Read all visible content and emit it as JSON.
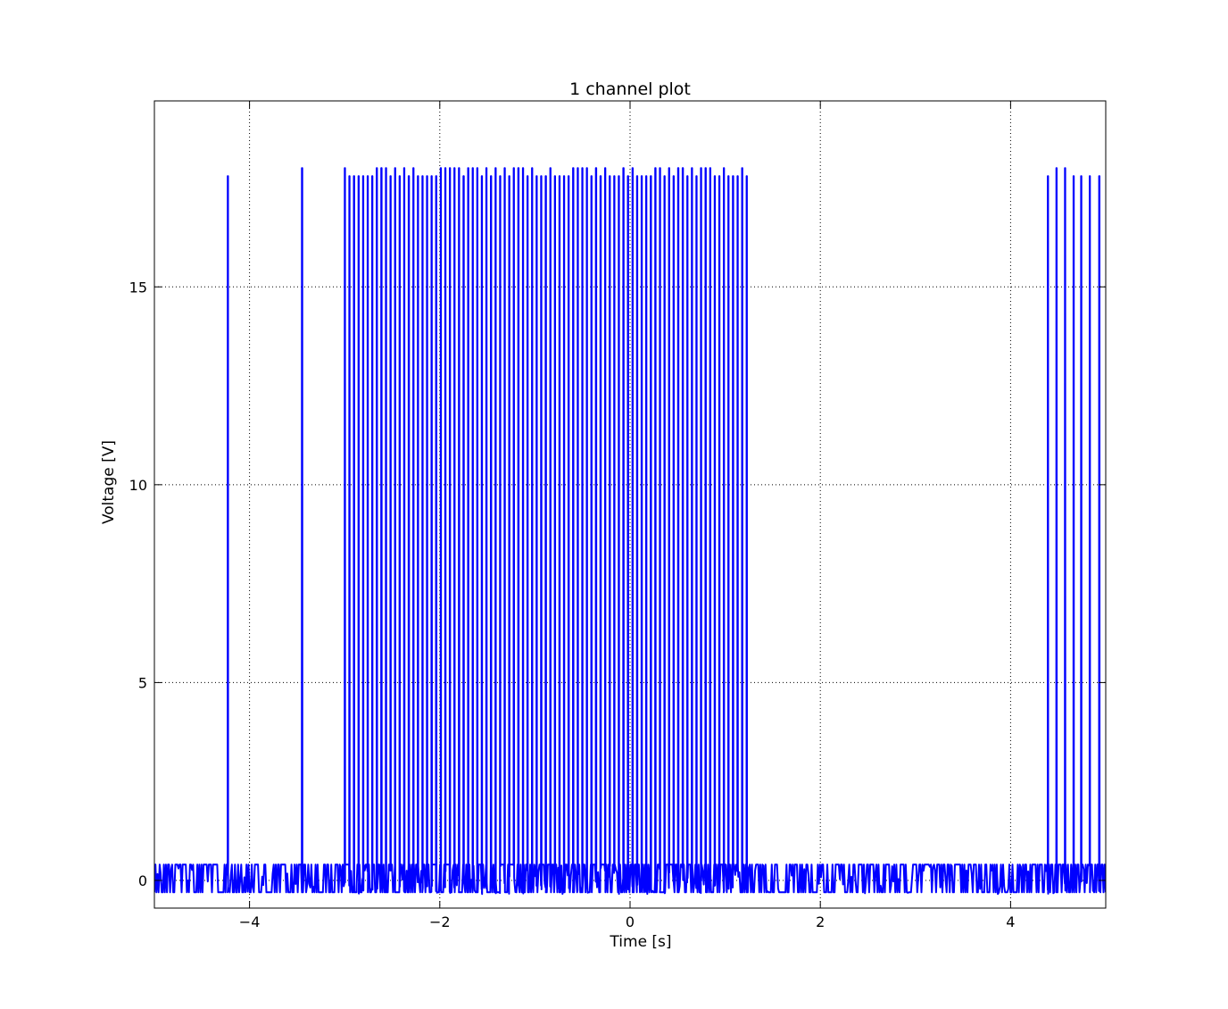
{
  "chart_data": {
    "type": "line",
    "title": "1 channel plot",
    "xlabel": "Time [s]",
    "ylabel": "Voltage [V]",
    "xlim": [
      -5,
      5
    ],
    "ylim": [
      -0.7,
      19.7
    ],
    "xticks": [
      -4,
      -2,
      0,
      2,
      4
    ],
    "yticks": [
      0,
      5,
      10,
      15
    ],
    "xtick_labels": [
      "−4",
      "−2",
      "0",
      "2",
      "4"
    ],
    "ytick_labels": [
      "0",
      "5",
      "10",
      "15"
    ],
    "grid": true,
    "baseline_noise_range": [
      -0.35,
      0.4
    ],
    "pulse_peak": 17.8,
    "series": [
      {
        "color": "#0000ff",
        "isolated_pulses_x": [
          -4.23,
          -3.45,
          4.39,
          4.48,
          4.57,
          4.66,
          4.74,
          4.83,
          4.93
        ],
        "pulse_train": {
          "start": -3.0,
          "end": 1.23,
          "period": 0.048
        }
      }
    ]
  }
}
